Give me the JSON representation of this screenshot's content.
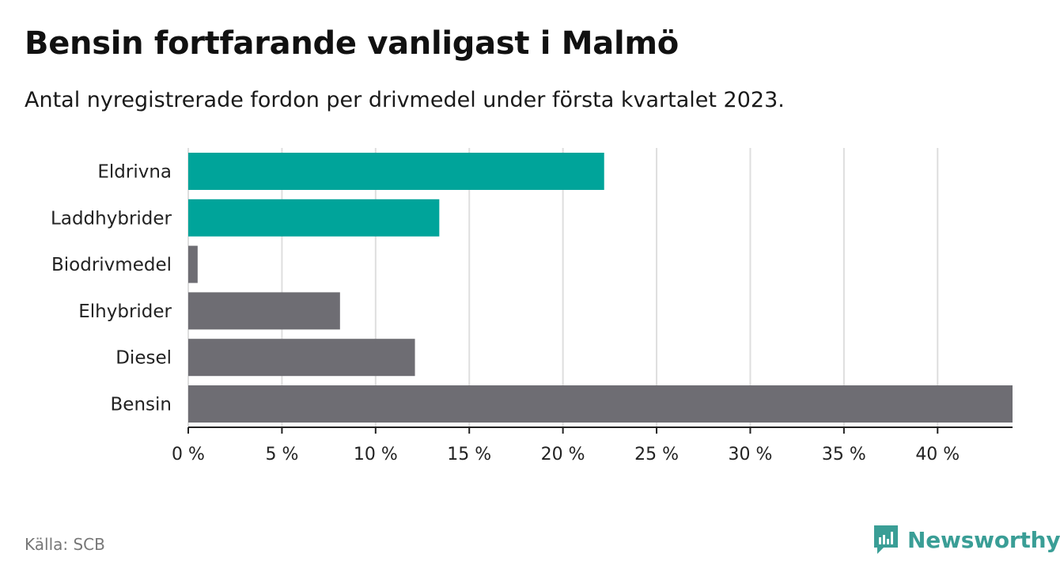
{
  "header": {
    "title": "Bensin fortfarande vanligast i Malmö",
    "subtitle": "Antal nyregistrerade fordon per drivmedel under första kvartalet 2023."
  },
  "footer": {
    "source": "Källa: SCB",
    "brand_name": "Newsworthy",
    "brand_icon": "newsworthy-logo-icon",
    "brand_color": "#3a9e96"
  },
  "chart_data": {
    "type": "bar",
    "orientation": "horizontal",
    "categories": [
      "Eldrivna",
      "Laddhybrider",
      "Biodrivmedel",
      "Elhybrider",
      "Diesel",
      "Bensin"
    ],
    "values": [
      22.2,
      13.4,
      0.5,
      8.1,
      12.1,
      44.0
    ],
    "colors": [
      "#00a49a",
      "#00a49a",
      "#6e6d73",
      "#6e6d73",
      "#6e6d73",
      "#6e6d73"
    ],
    "xlim": [
      0,
      44
    ],
    "xticks": [
      0,
      5,
      10,
      15,
      20,
      25,
      30,
      35,
      40
    ],
    "xtick_labels": [
      "0 %",
      "5 %",
      "10 %",
      "15 %",
      "20 %",
      "25 %",
      "30 %",
      "35 %",
      "40 %"
    ],
    "grid": true,
    "xlabel": "",
    "ylabel": ""
  }
}
